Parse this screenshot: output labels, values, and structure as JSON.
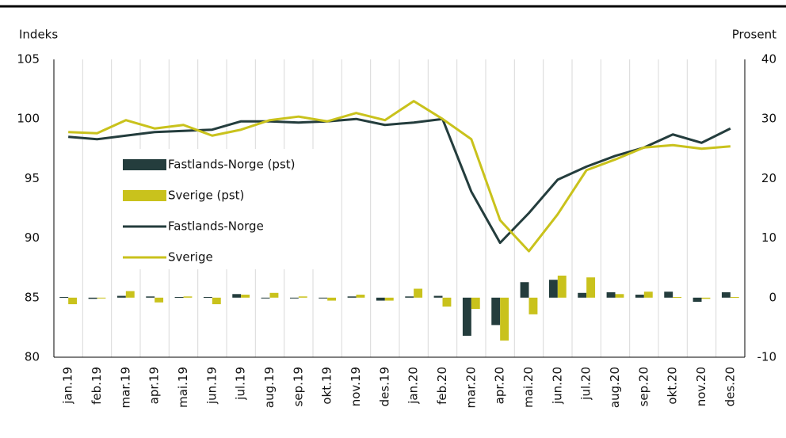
{
  "chart_data": {
    "type": "bar_line",
    "y_label": "Indeks",
    "y2_label": "Prosent",
    "categories": [
      "jan.19",
      "feb.19",
      "mar.19",
      "apr.19",
      "mai.19",
      "jun.19",
      "jul.19",
      "aug.19",
      "sep.19",
      "okt.19",
      "nov.19",
      "des.19",
      "jan.20",
      "feb.20",
      "mar.20",
      "apr.20",
      "mai.20",
      "jun.20",
      "jul.20",
      "aug.20",
      "sep.20",
      "okt.20",
      "nov.20",
      "des.20"
    ],
    "series": [
      {
        "name": "Fastlands-Norge (pst)",
        "type": "bar",
        "axis": "y2",
        "color": "#243d3d",
        "values": [
          0.1,
          -0.2,
          0.3,
          0.2,
          0.1,
          0.1,
          0.6,
          0.0,
          0.0,
          0.0,
          0.2,
          -0.5,
          0.2,
          0.3,
          -6.4,
          -4.6,
          2.6,
          3.0,
          0.8,
          0.9,
          0.5,
          1.0,
          -0.7,
          0.9
        ]
      },
      {
        "name": "Sverige (pst)",
        "type": "bar",
        "axis": "y2",
        "color": "#c9c21c",
        "values": [
          -1.1,
          -0.1,
          1.1,
          -0.8,
          0.2,
          -1.1,
          0.5,
          0.8,
          0.2,
          -0.5,
          0.5,
          -0.5,
          1.5,
          -1.5,
          -1.9,
          -7.2,
          -2.8,
          3.7,
          3.4,
          0.6,
          1.0,
          0.1,
          -0.2,
          0.1
        ]
      },
      {
        "name": "Fastlands-Norge",
        "type": "line",
        "color": "#243d3d",
        "values": [
          98.5,
          98.3,
          98.6,
          98.9,
          99.0,
          99.1,
          99.8,
          99.8,
          99.7,
          99.8,
          100.0,
          99.5,
          99.7,
          100.0,
          93.9,
          89.6,
          92.1,
          94.9,
          96.0,
          96.9,
          97.6,
          98.7,
          98.0,
          99.2
        ]
      },
      {
        "name": "Sverige",
        "type": "line",
        "color": "#c9c21c",
        "values": [
          98.9,
          98.8,
          99.9,
          99.2,
          99.5,
          98.6,
          99.1,
          99.9,
          100.2,
          99.8,
          100.5,
          99.9,
          101.5,
          100.0,
          98.3,
          91.5,
          88.9,
          92.0,
          95.7,
          96.6,
          97.6,
          97.8,
          97.5,
          97.7
        ]
      }
    ],
    "ylim": [
      80,
      105
    ],
    "yticks": [
      80,
      85,
      90,
      95,
      100,
      105
    ],
    "y2lim": [
      -10,
      40
    ],
    "y2ticks": [
      -10,
      0,
      10,
      20,
      30,
      40
    ],
    "vertical_grid": true,
    "legend": "left"
  }
}
